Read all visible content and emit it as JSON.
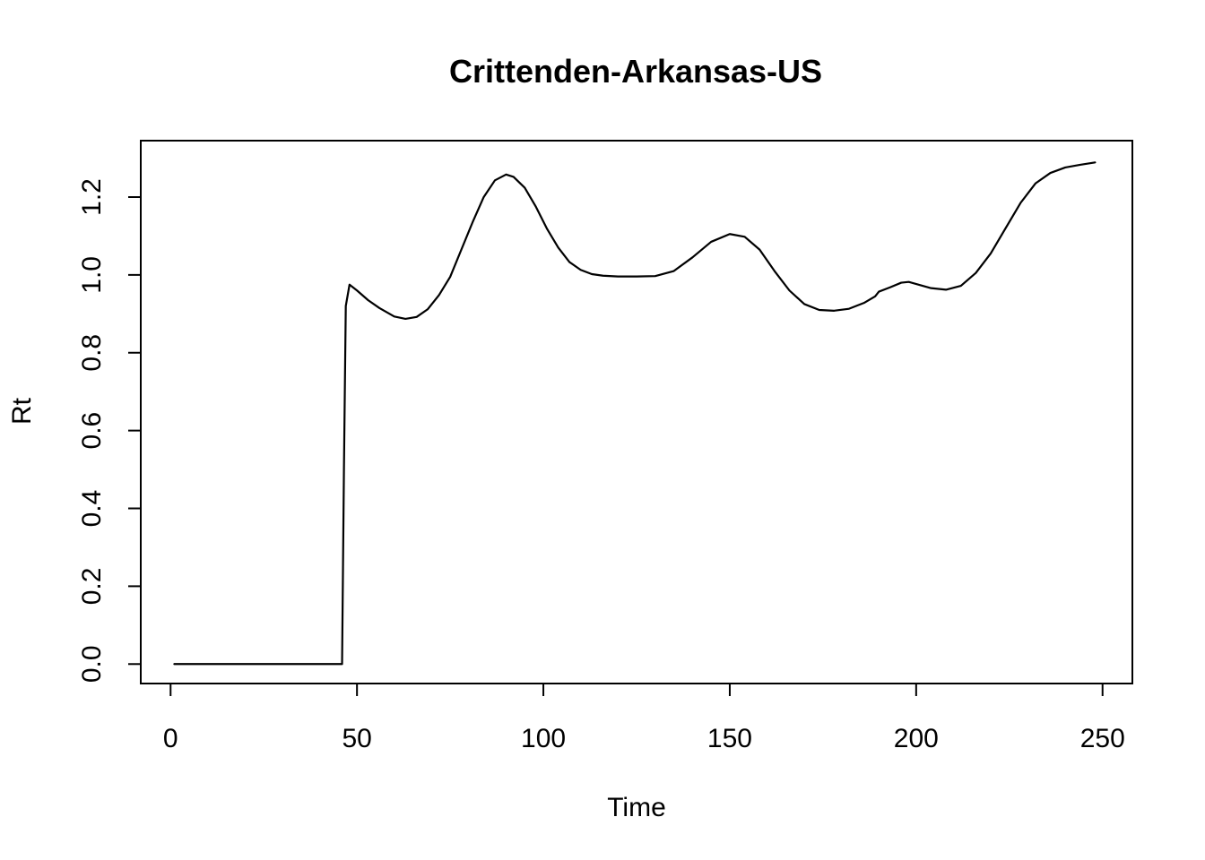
{
  "chart_data": {
    "type": "line",
    "title": "Crittenden-Arkansas-US",
    "xlabel": "Time",
    "ylabel": "Rt",
    "xlim": [
      -8,
      258
    ],
    "ylim": [
      -0.05,
      1.345
    ],
    "x_ticks": [
      0,
      50,
      100,
      150,
      200,
      250
    ],
    "x_tick_labels": [
      "0",
      "50",
      "100",
      "150",
      "200",
      "250"
    ],
    "y_ticks": [
      0.0,
      0.2,
      0.4,
      0.6,
      0.8,
      1.0,
      1.2
    ],
    "y_tick_labels": [
      "0.0",
      "0.2",
      "0.4",
      "0.6",
      "0.8",
      "1.0",
      "1.2"
    ],
    "grid": false,
    "legend": "none",
    "series": [
      {
        "color": "#000000",
        "x": [
          1,
          10,
          20,
          30,
          40,
          46,
          46.5,
          47,
          48,
          50,
          53,
          56,
          60,
          63,
          66,
          69,
          72,
          75,
          78,
          81,
          84,
          87,
          90,
          92,
          95,
          98,
          101,
          104,
          107,
          110,
          113,
          116,
          120,
          125,
          130,
          135,
          140,
          145,
          150,
          154,
          158,
          162,
          166,
          170,
          174,
          178,
          182,
          186,
          189,
          190,
          193,
          196,
          198,
          201,
          204,
          208,
          212,
          216,
          220,
          224,
          228,
          232,
          236,
          240,
          244,
          248
        ],
        "y": [
          0.0,
          0.0,
          0.0,
          0.0,
          0.0,
          0.0,
          0.5,
          0.92,
          0.975,
          0.96,
          0.935,
          0.915,
          0.893,
          0.887,
          0.892,
          0.912,
          0.948,
          0.995,
          1.065,
          1.135,
          1.2,
          1.243,
          1.258,
          1.252,
          1.224,
          1.175,
          1.118,
          1.07,
          1.033,
          1.013,
          1.002,
          0.998,
          0.996,
          0.996,
          0.997,
          1.01,
          1.045,
          1.085,
          1.105,
          1.098,
          1.065,
          1.01,
          0.96,
          0.925,
          0.91,
          0.908,
          0.913,
          0.928,
          0.945,
          0.957,
          0.968,
          0.98,
          0.982,
          0.974,
          0.966,
          0.962,
          0.972,
          1.005,
          1.055,
          1.12,
          1.185,
          1.235,
          1.262,
          1.276,
          1.283,
          1.289
        ]
      }
    ]
  }
}
